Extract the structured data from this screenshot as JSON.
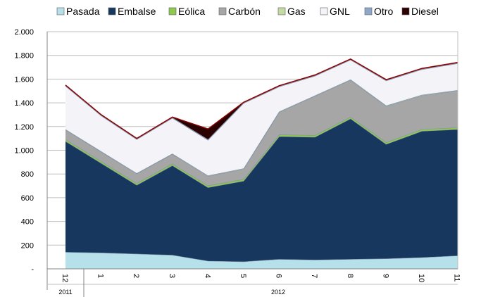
{
  "chart_data": {
    "type": "area",
    "stacked": true,
    "categories": [
      "12",
      "1",
      "2",
      "3",
      "4",
      "5",
      "6",
      "7",
      "8",
      "9",
      "10",
      "11"
    ],
    "year_groups": [
      {
        "label": "2011",
        "from_index": 0,
        "to_index": 0
      },
      {
        "label": "2012",
        "from_index": 1,
        "to_index": 11
      }
    ],
    "y_ticks": [
      "-",
      "200",
      "400",
      "600",
      "800",
      "1.000",
      "1.200",
      "1.400",
      "1.600",
      "1.800",
      "2.000"
    ],
    "ylim": [
      0,
      2000
    ],
    "y_step": 200,
    "grid": true,
    "legend_position": "top",
    "series": [
      {
        "name": "Pasada",
        "color": "#b7e1ea",
        "values": [
          140,
          135,
          125,
          115,
          65,
          60,
          80,
          75,
          80,
          85,
          95,
          110
        ]
      },
      {
        "name": "Embalse",
        "color": "#17375e",
        "values": [
          935,
          755,
          580,
          755,
          620,
          680,
          1035,
          1035,
          1185,
          965,
          1065,
          1065
        ]
      },
      {
        "name": "Eólica",
        "color": "#8fc84f",
        "values": [
          15,
          15,
          15,
          15,
          15,
          15,
          15,
          15,
          15,
          15,
          15,
          15
        ]
      },
      {
        "name": "Carbón",
        "color": "#a6a6a6",
        "values": [
          80,
          80,
          80,
          80,
          80,
          85,
          190,
          330,
          310,
          305,
          285,
          310
        ]
      },
      {
        "name": "Gas",
        "color": "#c4dba4",
        "values": [
          5,
          5,
          5,
          5,
          5,
          5,
          5,
          5,
          5,
          5,
          5,
          5
        ]
      },
      {
        "name": "GNL",
        "color": "#f3f3f8",
        "values": [
          365,
          300,
          285,
          300,
          300,
          550,
          210,
          165,
          165,
          210,
          215,
          225
        ]
      },
      {
        "name": "Otro",
        "color": "#8ea9c8",
        "values": [
          5,
          5,
          5,
          5,
          5,
          5,
          5,
          5,
          5,
          5,
          5,
          5
        ]
      },
      {
        "name": "Diesel",
        "color": "#2b0000",
        "values": [
          5,
          5,
          5,
          5,
          90,
          5,
          5,
          5,
          5,
          5,
          5,
          5
        ]
      }
    ]
  }
}
